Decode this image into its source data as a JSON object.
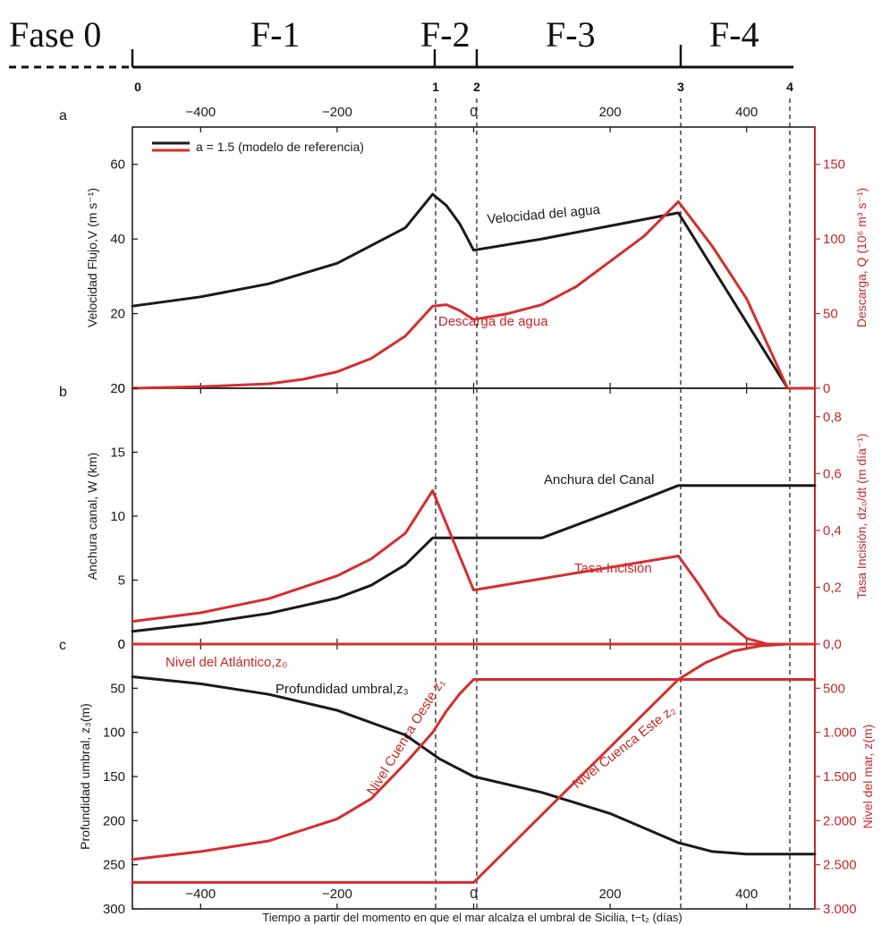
{
  "colors": {
    "black_series": "#1a1a1a",
    "red_series": "#d32f2f",
    "axis": "#111111"
  },
  "phases": {
    "labels": [
      "Fase 0",
      "F-1",
      "F-2",
      "F-3",
      "F-4"
    ],
    "milestones": [
      "0",
      "1",
      "2",
      "3",
      "4"
    ]
  },
  "chart_data": [
    {
      "panel": "a",
      "type": "line",
      "top_axis_ticks": [
        "−400",
        "−200",
        "0",
        "200",
        "400"
      ],
      "x_ticks": [
        -400,
        -200,
        0,
        200,
        400
      ],
      "xlim": [
        -500,
        500
      ],
      "ylabel": "Velocidad Flujo,V (m s⁻¹)",
      "ylim": [
        0,
        70
      ],
      "y_ticks": [
        "0",
        "20",
        "40",
        "60"
      ],
      "ylabel_right": "Descarga,  Q (10⁶ m³ s⁻¹)",
      "ylim_right": [
        0,
        175
      ],
      "y_ticks_right": [
        "0",
        "50",
        "100",
        "150"
      ],
      "legend": {
        "label": "a = 1.5 (modelo de referencia)",
        "position": "top-left"
      },
      "annotations": [
        "Velocidad del agua",
        "Descarga de agua"
      ],
      "series": [
        {
          "axis": "left",
          "color": "black",
          "x": [
            -500,
            -400,
            -300,
            -200,
            -100,
            -60,
            -40,
            -20,
            0,
            100,
            200,
            300,
            460,
            500
          ],
          "y": [
            22,
            24.5,
            28,
            33.5,
            43,
            52,
            49,
            44,
            37,
            40,
            43.5,
            47,
            0,
            0
          ]
        },
        {
          "axis": "right",
          "color": "red",
          "x": [
            -500,
            -400,
            -300,
            -250,
            -200,
            -150,
            -100,
            -80,
            -60,
            -40,
            -20,
            0,
            50,
            100,
            150,
            200,
            250,
            300,
            350,
            400,
            460,
            500
          ],
          "y": [
            0,
            1,
            3,
            6,
            11,
            20,
            35,
            45,
            55,
            56,
            52,
            46,
            50,
            56,
            68,
            85,
            102,
            125,
            95,
            60,
            0,
            0
          ]
        }
      ]
    },
    {
      "panel": "b",
      "type": "line",
      "xlim": [
        -500,
        500
      ],
      "ylabel": "Anchura canal, W (km)",
      "ylim": [
        0,
        20
      ],
      "y_ticks": [
        "0",
        "5",
        "10",
        "15",
        "20"
      ],
      "ylabel_right": "Tasa Incisión, dz₀/dt (m día⁻¹)",
      "ylim_right": [
        0,
        0.9
      ],
      "y_ticks_right": [
        "0,0",
        "0,2",
        "0,4",
        "0,6",
        "0,8"
      ],
      "annotations": [
        "Anchura del Canal",
        "Tasa Incisión"
      ],
      "series": [
        {
          "axis": "left",
          "color": "black",
          "x": [
            -500,
            -400,
            -300,
            -200,
            -150,
            -100,
            -60,
            0,
            100,
            200,
            300,
            500
          ],
          "y": [
            1,
            1.6,
            2.4,
            3.6,
            4.6,
            6.2,
            8.3,
            8.3,
            8.3,
            10.3,
            12.4,
            12.4
          ]
        },
        {
          "axis": "right",
          "color": "red",
          "x": [
            -500,
            -400,
            -300,
            -200,
            -150,
            -100,
            -60,
            0,
            100,
            200,
            300,
            330,
            360,
            400,
            430,
            460,
            500
          ],
          "y": [
            0.08,
            0.11,
            0.16,
            0.24,
            0.3,
            0.39,
            0.54,
            0.19,
            0.23,
            0.27,
            0.31,
            0.21,
            0.1,
            0.02,
            0,
            0,
            0
          ]
        }
      ]
    },
    {
      "panel": "c",
      "type": "line",
      "x_ticks": [
        "−400",
        "−200",
        "0",
        "200",
        "400"
      ],
      "xlim": [
        -500,
        500
      ],
      "xlabel": "Tiempo a partir del momento en que el mar alcalza el umbral de Sicilia,  t−t₂  (días)",
      "ylabel": "Profundidad umbral, z₃(m)",
      "ylim": [
        300,
        0
      ],
      "y_ticks": [
        "0",
        "50",
        "100",
        "150",
        "200",
        "250",
        "300"
      ],
      "ylabel_right": "Nivel del mar, z(m)",
      "ylim_right": [
        3000,
        0
      ],
      "y_ticks_right": [
        "500",
        "1.000",
        "1.500",
        "2.000",
        "2.500",
        "3.000"
      ],
      "annotations": [
        "Nivel del Atlántico,z₀",
        "Profundidad umbral,z₃",
        "Nivel Cuenca Oeste z₁",
        "Nivel Cuenca Este z₂"
      ],
      "series": [
        {
          "axis": "left",
          "color": "black",
          "x": [
            -500,
            -400,
            -300,
            -200,
            -100,
            -50,
            0,
            100,
            200,
            300,
            350,
            400,
            500
          ],
          "y": [
            37,
            45,
            57,
            75,
            103,
            130,
            150,
            168,
            192,
            225,
            235,
            238,
            238
          ]
        },
        {
          "axis": "right",
          "color": "red",
          "x": [
            -500,
            500
          ],
          "y": [
            0,
            0
          ]
        },
        {
          "axis": "right",
          "color": "red",
          "x": [
            -500,
            -400,
            -300,
            -200,
            -150,
            -100,
            -60,
            -40,
            -20,
            0,
            300,
            500
          ],
          "y": [
            2440,
            2350,
            2230,
            1980,
            1750,
            1350,
            1000,
            760,
            560,
            400,
            400,
            400
          ]
        },
        {
          "axis": "right",
          "color": "red",
          "x": [
            -500,
            0,
            300,
            340,
            380,
            420,
            460,
            500
          ],
          "y": [
            2700,
            2700,
            400,
            210,
            80,
            20,
            0,
            0
          ]
        }
      ]
    }
  ]
}
